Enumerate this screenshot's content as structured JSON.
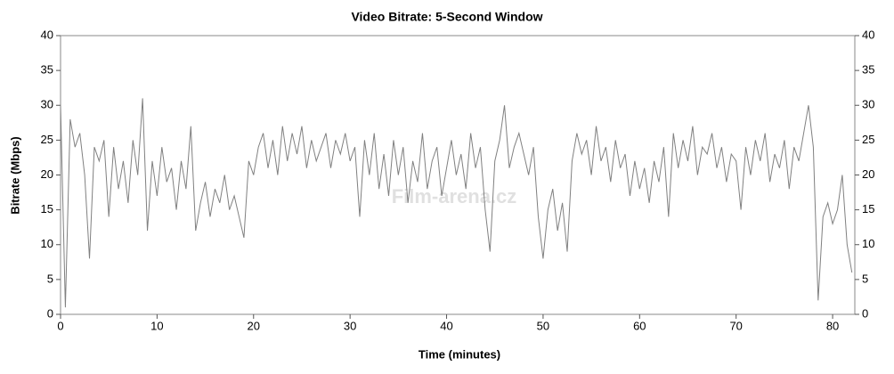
{
  "chart_data": {
    "type": "line",
    "title": "Video Bitrate: 5-Second Window",
    "x_label": "Time (minutes)",
    "y_label": "Bitrate (Mbps)",
    "watermark": "Film-arena.cz",
    "xlim": [
      0,
      82.3
    ],
    "ylim": [
      0,
      40
    ],
    "xticks": [
      0,
      10,
      20,
      30,
      40,
      50,
      60,
      70,
      80
    ],
    "yticks": [
      0,
      5,
      10,
      15,
      20,
      25,
      30,
      35,
      40
    ],
    "series": [
      {
        "name": "Bitrate",
        "color": "#808080",
        "x": [
          0,
          0.5,
          1,
          1.5,
          2,
          2.5,
          3,
          3.5,
          4,
          4.5,
          5,
          5.5,
          6,
          6.5,
          7,
          7.5,
          8,
          8.5,
          9,
          9.5,
          10,
          10.5,
          11,
          11.5,
          12,
          12.5,
          13,
          13.5,
          14,
          14.5,
          15,
          15.5,
          16,
          16.5,
          17,
          17.5,
          18,
          18.5,
          19,
          19.5,
          20,
          20.5,
          21,
          21.5,
          22,
          22.5,
          23,
          23.5,
          24,
          24.5,
          25,
          25.5,
          26,
          26.5,
          27,
          27.5,
          28,
          28.5,
          29,
          29.5,
          30,
          30.5,
          31,
          31.5,
          32,
          32.5,
          33,
          33.5,
          34,
          34.5,
          35,
          35.5,
          36,
          36.5,
          37,
          37.5,
          38,
          38.5,
          39,
          39.5,
          40,
          40.5,
          41,
          41.5,
          42,
          42.5,
          43,
          43.5,
          44,
          44.5,
          45,
          45.5,
          46,
          46.5,
          47,
          47.5,
          48,
          48.5,
          49,
          49.5,
          50,
          50.5,
          51,
          51.5,
          52,
          52.5,
          53,
          53.5,
          54,
          54.5,
          55,
          55.5,
          56,
          56.5,
          57,
          57.5,
          58,
          58.5,
          59,
          59.5,
          60,
          60.5,
          61,
          61.5,
          62,
          62.5,
          63,
          63.5,
          64,
          64.5,
          65,
          65.5,
          66,
          66.5,
          67,
          67.5,
          68,
          68.5,
          69,
          69.5,
          70,
          70.5,
          71,
          71.5,
          72,
          72.5,
          73,
          73.5,
          74,
          74.5,
          75,
          75.5,
          76,
          76.5,
          77,
          77.5,
          78,
          78.5,
          79,
          79.5,
          80,
          80.5,
          81,
          81.5,
          82
        ],
        "values": [
          30,
          1,
          28,
          24,
          26,
          20,
          8,
          24,
          22,
          25,
          14,
          24,
          18,
          22,
          16,
          25,
          20,
          31,
          12,
          22,
          17,
          24,
          19,
          21,
          15,
          22,
          18,
          27,
          12,
          16,
          19,
          14,
          18,
          16,
          20,
          15,
          17,
          14,
          11,
          22,
          20,
          24,
          26,
          21,
          25,
          20,
          27,
          22,
          26,
          23,
          27,
          21,
          25,
          22,
          24,
          26,
          21,
          25,
          23,
          26,
          22,
          24,
          14,
          25,
          20,
          26,
          18,
          23,
          17,
          25,
          20,
          24,
          16,
          22,
          19,
          26,
          18,
          22,
          24,
          17,
          21,
          25,
          20,
          23,
          18,
          26,
          21,
          24,
          15,
          9,
          22,
          25,
          30,
          21,
          24,
          26,
          23,
          20,
          24,
          14,
          8,
          15,
          18,
          12,
          16,
          9,
          22,
          26,
          23,
          25,
          20,
          27,
          22,
          24,
          19,
          25,
          21,
          23,
          17,
          22,
          18,
          21,
          16,
          22,
          19,
          24,
          14,
          26,
          21,
          25,
          22,
          27,
          20,
          24,
          23,
          26,
          21,
          24,
          19,
          23,
          22,
          15,
          24,
          20,
          25,
          22,
          26,
          19,
          23,
          21,
          25,
          18,
          24,
          22,
          26,
          30,
          24,
          2,
          14,
          16,
          13,
          15,
          20,
          10,
          6
        ]
      }
    ]
  }
}
